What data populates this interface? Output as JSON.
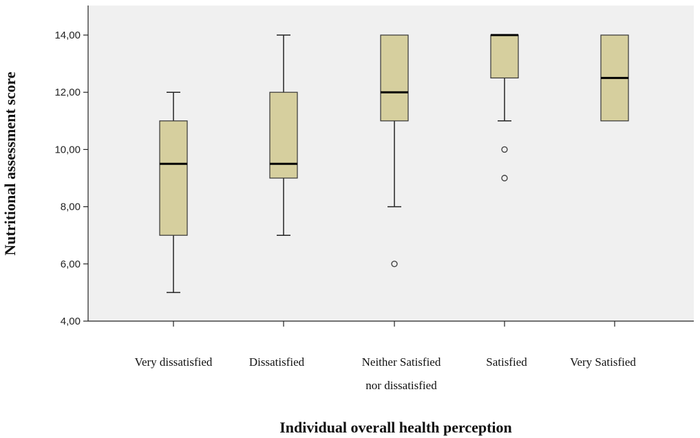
{
  "chart_data": {
    "type": "boxplot",
    "title": "",
    "xlabel": "Individual overall health perception",
    "ylabel": "Nutritional assessment score",
    "ylim": [
      4,
      15
    ],
    "y_ticks": [
      "4,00",
      "6,00",
      "8,00",
      "10,00",
      "12,00",
      "14,00"
    ],
    "y_tick_values": [
      4,
      6,
      8,
      10,
      12,
      14
    ],
    "grid": false,
    "box_color": "#d6cf9e",
    "plot_background": "#f0f0f0",
    "categories": [
      {
        "lines": [
          "Very dissatisfied"
        ]
      },
      {
        "lines": [
          "Dissatisfied"
        ]
      },
      {
        "lines": [
          "Neither Satisfied",
          "nor dissatisfied"
        ]
      },
      {
        "lines": [
          "Satisfied"
        ]
      },
      {
        "lines": [
          "Very Satisfied"
        ]
      }
    ],
    "boxes": [
      {
        "whisker_low": 5,
        "q1": 7,
        "median": 9.5,
        "q3": 11,
        "whisker_high": 12,
        "outliers": []
      },
      {
        "whisker_low": 7,
        "q1": 9,
        "median": 9.5,
        "q3": 12,
        "whisker_high": 14,
        "outliers": []
      },
      {
        "whisker_low": 8,
        "q1": 11,
        "median": 12,
        "q3": 14,
        "whisker_high": 14,
        "outliers": [
          6
        ]
      },
      {
        "whisker_low": 11,
        "q1": 12.5,
        "median": 14,
        "q3": 14,
        "whisker_high": 14,
        "outliers": [
          10,
          9
        ]
      },
      {
        "whisker_low": 11,
        "q1": 11,
        "median": 12.5,
        "q3": 14,
        "whisker_high": 14,
        "outliers": []
      }
    ]
  }
}
